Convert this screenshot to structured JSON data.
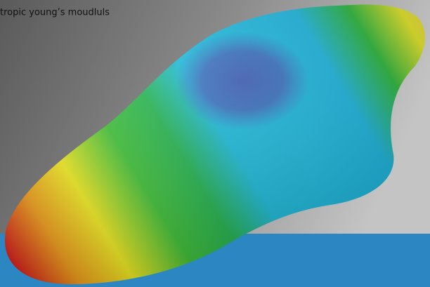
{
  "caption": "tropic young’s moudluls"
}
